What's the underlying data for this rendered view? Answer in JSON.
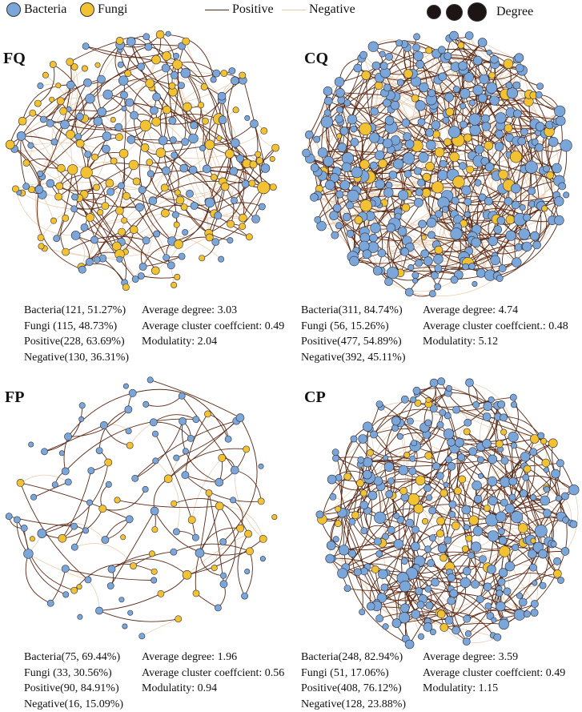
{
  "legend": {
    "bacteria_label": "Bacteria",
    "fungi_label": "Fungi",
    "positive_label": "Positive",
    "negative_label": "Negative",
    "degree_label": "Degree"
  },
  "colors": {
    "bacteria": "#7ba6d9",
    "fungi": "#f2c232",
    "positive": "#5c2a17",
    "negative": "#e9c9a9",
    "node_stroke": "#2f2f3a"
  },
  "panels": [
    {
      "id": "FQ",
      "label": "FQ",
      "bacteria_stat": "Bacteria(121, 51.27%)",
      "fungi_stat": "Fungi  (115, 48.73%)",
      "positive_stat": "Positive(228, 63.69%)",
      "negative_stat": "Negative(130, 36.31%)",
      "avg_degree": "Average degree: 3.03",
      "avg_cluster": "Average cluster coeffcient: 0.49",
      "modularity": "Modulatity: 2.04",
      "network": {
        "bacteria": 121,
        "fungi": 115,
        "positive": 228,
        "negative": 130,
        "average_degree": 3.03
      }
    },
    {
      "id": "CQ",
      "label": "CQ",
      "bacteria_stat": "Bacteria(311, 84.74%)",
      "fungi_stat": "Fungi  (56, 15.26%)",
      "positive_stat": "Positive(477, 54.89%)",
      "negative_stat": "Negative(392, 45.11%)",
      "avg_degree": "Average degree: 4.74",
      "avg_cluster": "Average cluster coeffcient.: 0.48",
      "modularity": "Modulatity: 5.12",
      "network": {
        "bacteria": 311,
        "fungi": 56,
        "positive": 477,
        "negative": 392,
        "average_degree": 4.74
      }
    },
    {
      "id": "FP",
      "label": "FP",
      "bacteria_stat": "Bacteria(75, 69.44%)",
      "fungi_stat": "Fungi  (33, 30.56%)",
      "positive_stat": "Positive(90, 84.91%)",
      "negative_stat": "Negative(16, 15.09%)",
      "avg_degree": "Average degree: 1.96",
      "avg_cluster": "Average cluster coeffcient: 0.56",
      "modularity": "Modulatity: 0.94",
      "network": {
        "bacteria": 75,
        "fungi": 33,
        "positive": 90,
        "negative": 16,
        "average_degree": 1.96
      }
    },
    {
      "id": "CP",
      "label": "CP",
      "bacteria_stat": "Bacteria(248, 82.94%)",
      "fungi_stat": "Fungi  (51, 17.06%)",
      "positive_stat": "Positive(408, 76.12%)",
      "negative_stat": "Negative(128, 23.88%)",
      "avg_degree": "Average degree: 3.59",
      "avg_cluster": "Average cluster coeffcient: 0.49",
      "modularity": "Modulatity: 1.15",
      "network": {
        "bacteria": 248,
        "fungi": 51,
        "positive": 408,
        "negative": 128,
        "average_degree": 3.59
      }
    }
  ]
}
